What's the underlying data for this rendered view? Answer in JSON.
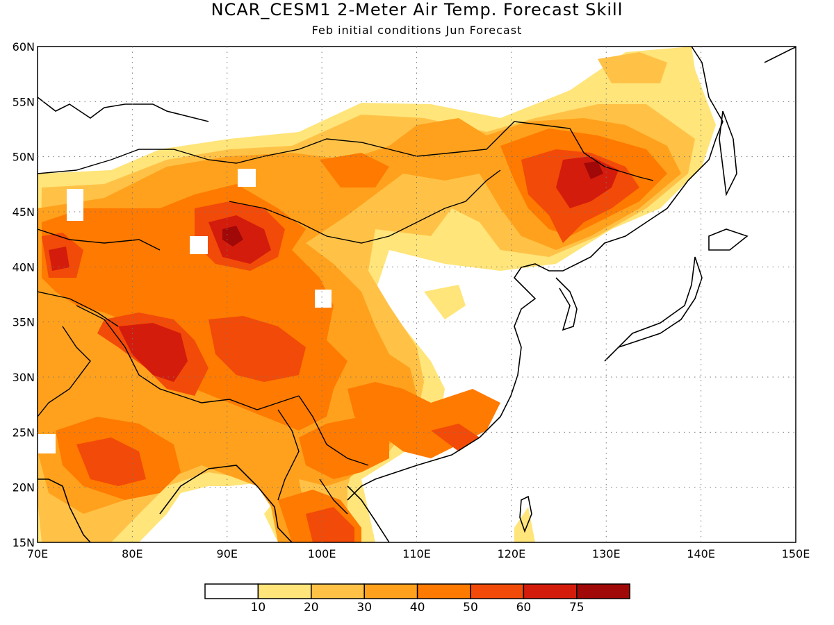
{
  "title": "NCAR_CESM1 2-Meter Air Temp. Forecast Skill",
  "subtitle": "Feb initial conditions  Jun Forecast",
  "axes": {
    "lon_ticks": [
      "70E",
      "80E",
      "90E",
      "100E",
      "110E",
      "120E",
      "130E",
      "140E",
      "150E"
    ],
    "lat_ticks": [
      "15N",
      "20N",
      "25N",
      "30N",
      "35N",
      "40N",
      "45N",
      "50N",
      "55N",
      "60N"
    ]
  },
  "colorbar": {
    "labels": [
      "10",
      "20",
      "30",
      "40",
      "50",
      "60",
      "75"
    ],
    "colors": [
      "#ffffff",
      "#ffe57a",
      "#ffc247",
      "#ffa11c",
      "#ff7a00",
      "#f24a08",
      "#d41c0d",
      "#a10808"
    ]
  },
  "chart_data": {
    "type": "heatmap",
    "title": "NCAR_CESM1 2-Meter Air Temp. Forecast Skill",
    "subtitle": "Feb initial conditions  Jun Forecast",
    "x_range_deg": [
      70,
      150
    ],
    "y_range_deg": [
      15,
      60
    ],
    "levels": [
      10,
      20,
      30,
      40,
      50,
      60,
      75
    ],
    "hotspots": [
      {
        "lon": 91,
        "lat": 42,
        "value": 70
      },
      {
        "lon": 84,
        "lat": 33,
        "value": 65
      },
      {
        "lon": 75,
        "lat": 40,
        "value": 55
      },
      {
        "lon": 128,
        "lat": 48,
        "value": 65
      },
      {
        "lon": 82,
        "lat": 22,
        "value": 55
      },
      {
        "lon": 100,
        "lat": 17,
        "value": 55
      },
      {
        "lon": 95,
        "lat": 33,
        "value": 55
      },
      {
        "lon": 112,
        "lat": 26,
        "value": 45
      },
      {
        "lon": 119,
        "lat": 53,
        "value": 35
      },
      {
        "lon": 100,
        "lat": 48,
        "value": 40
      }
    ]
  }
}
